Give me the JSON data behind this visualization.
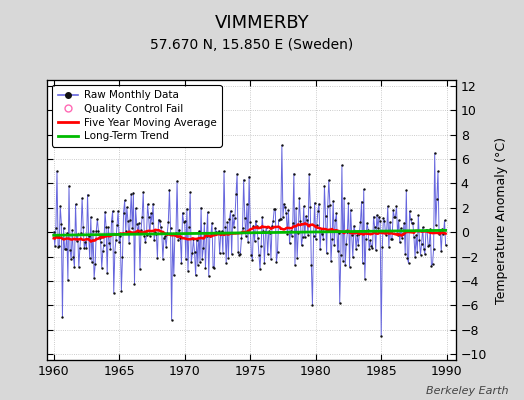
{
  "title": "VIMMERBY",
  "subtitle": "57.670 N, 15.850 E (Sweden)",
  "ylabel": "Temperature Anomaly (°C)",
  "watermark": "Berkeley Earth",
  "xlim": [
    1959.5,
    1990.7
  ],
  "ylim": [
    -10.5,
    12.5
  ],
  "xticks": [
    1960,
    1965,
    1970,
    1975,
    1980,
    1985,
    1990
  ],
  "yticks": [
    -10,
    -8,
    -6,
    -4,
    -2,
    0,
    2,
    4,
    6,
    8,
    10,
    12
  ],
  "bg_color": "#d8d8d8",
  "plot_bg_color": "#ffffff",
  "grid_color": "#bbbbbb",
  "line_color": "#6666dd",
  "ma_color": "#ff0000",
  "trend_color": "#00bb00",
  "dot_color": "#111111",
  "qc_color": "#ff69b4",
  "title_fontsize": 13,
  "subtitle_fontsize": 10,
  "seed": 42
}
